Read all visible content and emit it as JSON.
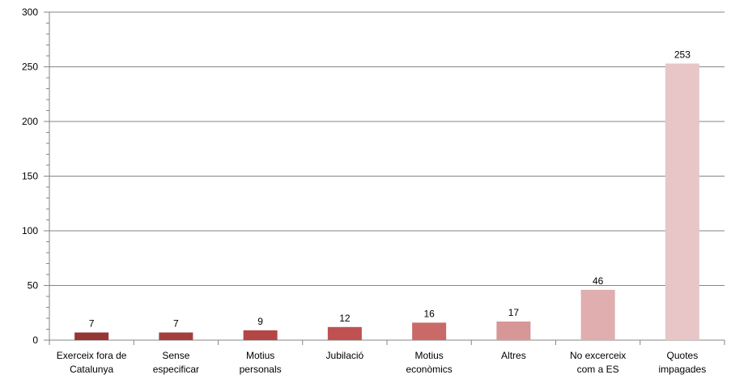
{
  "chart_data": {
    "type": "bar",
    "title": "",
    "xlabel": "",
    "ylabel": "",
    "ylim": [
      0,
      300
    ],
    "yticks": [
      0,
      50,
      100,
      150,
      200,
      250,
      300
    ],
    "grid": true,
    "legend": "none",
    "categories": [
      [
        "Exerceix fora de",
        "Catalunya"
      ],
      [
        "Sense",
        "especificar"
      ],
      [
        "Motius",
        "personals"
      ],
      [
        "Jubilació"
      ],
      [
        "Motius",
        "econòmics"
      ],
      [
        "Altres"
      ],
      [
        "No excerceix",
        "com a ES"
      ],
      [
        "Quotes",
        "impagades"
      ]
    ],
    "values": [
      7,
      7,
      9,
      12,
      16,
      17,
      46,
      253
    ],
    "colors": [
      "#953735",
      "#A23F3D",
      "#B24746",
      "#BF5251",
      "#C96A69",
      "#D69796",
      "#E0AEAE",
      "#E8C6C8"
    ]
  }
}
